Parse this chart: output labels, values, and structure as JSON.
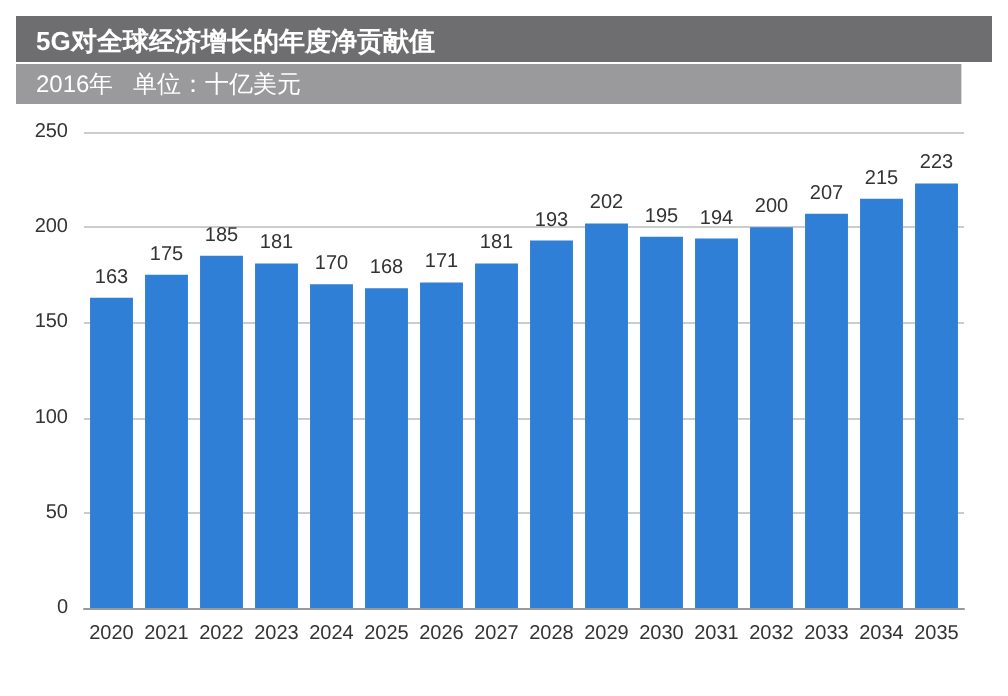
{
  "chart_data": {
    "type": "bar",
    "title": "5G对全球经济增长的年度净贡献值",
    "subtitle": "2016年   单位：十亿美元",
    "categories": [
      "2020",
      "2021",
      "2022",
      "2023",
      "2024",
      "2025",
      "2026",
      "2027",
      "2028",
      "2029",
      "2030",
      "2031",
      "2032",
      "2033",
      "2034",
      "2035"
    ],
    "values": [
      163,
      175,
      185,
      181,
      170,
      168,
      171,
      181,
      193,
      202,
      195,
      194,
      200,
      207,
      215,
      223
    ],
    "color": "#2f7fd6",
    "ylim": [
      0,
      250
    ],
    "yticks": [
      0,
      50,
      100,
      150,
      200,
      250
    ],
    "grid": "y",
    "data_labels": true
  }
}
